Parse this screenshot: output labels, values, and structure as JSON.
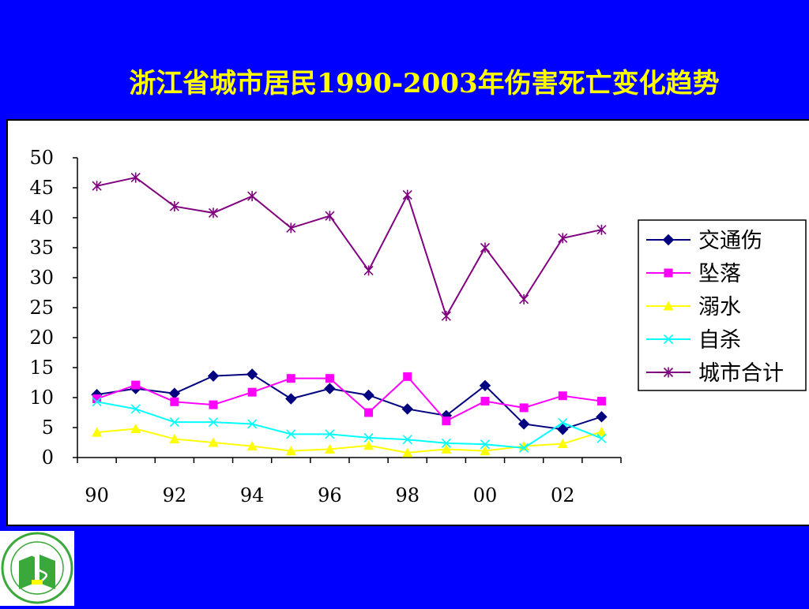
{
  "title": "浙江省城市居民1990-2003年伤害死亡变化趋势",
  "colors": {
    "background": "#0000ff",
    "title": "#ffff00",
    "logo_green": "#3aa83a"
  },
  "logo": {
    "icon": "cdc-caduceus-seal-icon"
  },
  "chart_data": {
    "type": "line",
    "x": [
      1990,
      1991,
      1992,
      1993,
      1994,
      1995,
      1996,
      1997,
      1998,
      1999,
      2000,
      2001,
      2002,
      2003
    ],
    "x_tick_labels": [
      "90",
      "92",
      "94",
      "96",
      "98",
      "00",
      "02"
    ],
    "ylim": [
      0,
      50
    ],
    "y_ticks": [
      0,
      5,
      10,
      15,
      20,
      25,
      30,
      35,
      40,
      45,
      50
    ],
    "grid": false,
    "legend_position": "right",
    "series": [
      {
        "name": "交通伤",
        "color": "#000080",
        "marker": "diamond",
        "values": [
          10.5,
          11.5,
          10.7,
          13.6,
          13.9,
          9.8,
          11.5,
          10.4,
          8.1,
          7.0,
          12.0,
          5.6,
          4.7,
          6.8
        ]
      },
      {
        "name": "坠落",
        "color": "#ff00ff",
        "marker": "square",
        "values": [
          9.8,
          12.1,
          9.3,
          8.8,
          10.9,
          13.2,
          13.2,
          7.5,
          13.5,
          6.1,
          9.4,
          8.3,
          10.3,
          9.4
        ]
      },
      {
        "name": "溺水",
        "color": "#ffff00",
        "marker": "triangle",
        "values": [
          4.2,
          4.8,
          3.1,
          2.5,
          1.9,
          1.1,
          1.4,
          2.0,
          0.8,
          1.4,
          1.1,
          1.9,
          2.3,
          4.3
        ]
      },
      {
        "name": "自杀",
        "color": "#00ffff",
        "marker": "x",
        "values": [
          9.3,
          8.1,
          5.9,
          5.9,
          5.6,
          3.9,
          3.9,
          3.3,
          3.0,
          2.4,
          2.2,
          1.6,
          5.8,
          3.2
        ]
      },
      {
        "name": "城市合计",
        "color": "#800080",
        "marker": "star",
        "values": [
          45.3,
          46.7,
          41.9,
          40.8,
          43.6,
          38.3,
          40.3,
          31.2,
          43.8,
          23.6,
          35.0,
          26.4,
          36.6,
          38.0
        ]
      }
    ]
  }
}
